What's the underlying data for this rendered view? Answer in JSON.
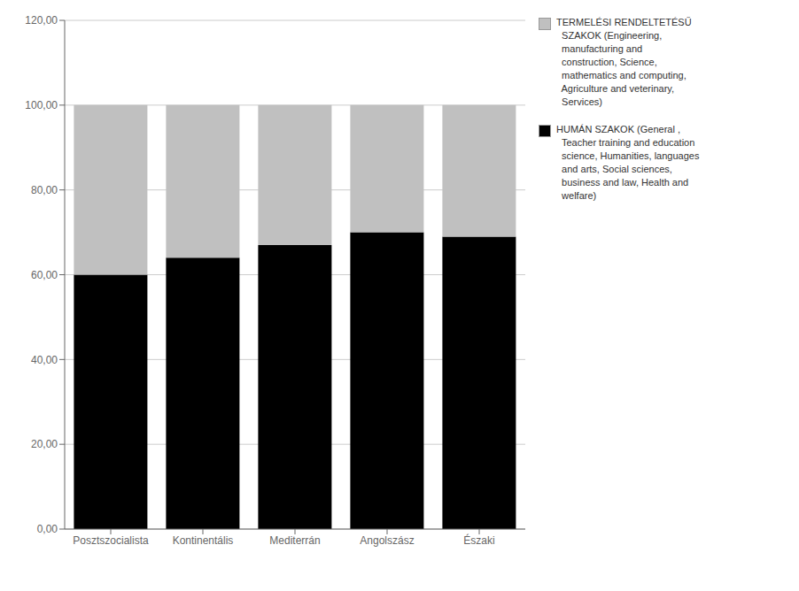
{
  "chart_data": {
    "type": "bar",
    "stacked": true,
    "grid": true,
    "legend": "right",
    "categories": [
      "Posztszocialista",
      "Kontinentális",
      "Mediterrán",
      "Angolszász",
      "Északi"
    ],
    "series": [
      {
        "name": "HUMÁN SZAKOK (General ,\n  Teacher training and education\n  science, Humanities, languages\n  and arts, Social sciences,\n  business and law, Health and\n  welfare)",
        "color": "#000000",
        "values": [
          60,
          64,
          67,
          70,
          69
        ]
      },
      {
        "name": "TERMELÉSI RENDELTETÉSŰ\n  SZAKOK (Engineering,\n  manufacturing and\n  construction, Science,\n  mathematics and computing,\n  Agriculture and veterinary,\n  Services)",
        "color": "#c0c0c0",
        "values": [
          40,
          36,
          33,
          30,
          31
        ]
      }
    ],
    "ylim": [
      0,
      120
    ],
    "yticks": [
      {
        "value": 0,
        "label": "0,00"
      },
      {
        "value": 20,
        "label": "20,00"
      },
      {
        "value": 40,
        "label": "40,00"
      },
      {
        "value": 60,
        "label": "60,00"
      },
      {
        "value": 80,
        "label": "80,00"
      },
      {
        "value": 100,
        "label": "100,00"
      },
      {
        "value": 120,
        "label": "120,00"
      }
    ]
  }
}
